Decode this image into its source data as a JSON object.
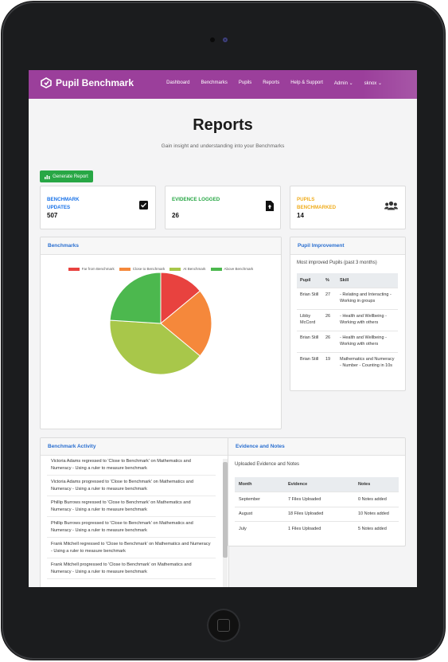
{
  "nav": {
    "brand": "Pupil Benchmark",
    "links": [
      "Dashboard",
      "Benchmarks",
      "Pupils",
      "Reports",
      "Help & Support",
      "Admin ⌄",
      "sknox ⌄"
    ]
  },
  "page": {
    "title": "Reports",
    "subtitle": "Gain insight and understanding into your Benchmarks",
    "generate_button": "Generate Report"
  },
  "stats": [
    {
      "label": "BENCHMARK UPDATES",
      "value": "507",
      "color": "#1a73e8",
      "icon": "check-square-icon"
    },
    {
      "label": "EVIDENCE LOGGED",
      "value": "26",
      "color": "#28a745",
      "icon": "file-upload-icon"
    },
    {
      "label": "PUPILS BENCHMARKED",
      "value": "14",
      "color": "#f0ad1e",
      "icon": "users-icon"
    }
  ],
  "benchmarks_card": {
    "title": "Benchmarks",
    "legend": [
      {
        "name": "Far from Benchmark",
        "color": "#e8423f"
      },
      {
        "name": "Close to Benchmark",
        "color": "#f5883b"
      },
      {
        "name": "At Benchmark",
        "color": "#a8c74a"
      },
      {
        "name": "Above Benchmark",
        "color": "#4cb84e"
      }
    ]
  },
  "chart_data": {
    "type": "pie",
    "title": "",
    "categories": [
      "Far from Benchmark",
      "Close to Benchmark",
      "At Benchmark",
      "Above Benchmark"
    ],
    "values": [
      14,
      22,
      40,
      24
    ],
    "colors": [
      "#e8423f",
      "#f5883b",
      "#a8c74a",
      "#4cb84e"
    ],
    "legend_placement": "top"
  },
  "pupil_improvement": {
    "title": "Pupil Improvement",
    "intro": "Most improved Pupils (past 3 months)",
    "headers": [
      "Pupil",
      "%",
      "Skill"
    ],
    "rows": [
      [
        "Brian Still",
        "27",
        "- Relating and Interacting - Working in groups"
      ],
      [
        "Libby McCord",
        "26",
        "- Health and Wellbeing - Working with others"
      ],
      [
        "Brian Still",
        "26",
        "- Health and Wellbeing - Working with others"
      ],
      [
        "Brian Still",
        "19",
        "Mathematics and Numeracy - Number - Counting in 10s"
      ]
    ]
  },
  "activity": {
    "title": "Benchmark Activity",
    "items": [
      "Victoria Adams regressed to 'Close to Benchmark' on Mathematics and Numeracy - Using a ruler to measure benchmark",
      "Victoria Adams progressed to 'Close to Benchmark' on Mathematics and Numeracy - Using a ruler to measure benchmark",
      "Phillip Burrows regressed to 'Close to Benchmark' on Mathematics and Numeracy - Using a ruler to measure benchmark",
      "Phillip Burrows progressed to 'Close to Benchmark' on Mathematics and Numeracy - Using a ruler to measure benchmark",
      "Frank Mitchell regressed to 'Close to Benchmark' on Mathematics and Numeracy - Using a ruler to measure benchmark",
      "Frank Mitchell progressed to 'Close to Benchmark' on Mathematics and Numeracy - Using a ruler to measure benchmark"
    ]
  },
  "evidence": {
    "title": "Evidence and Notes",
    "intro": "Uploaded Evidence and Notes",
    "headers": [
      "Month",
      "Evidence",
      "Notes"
    ],
    "rows": [
      [
        "September",
        "7 Files Uploaded",
        "0 Notes added"
      ],
      [
        "August",
        "18 Files Uploaded",
        "10 Notes added"
      ],
      [
        "July",
        "1 Files Uploaded",
        "5 Notes added"
      ]
    ]
  }
}
